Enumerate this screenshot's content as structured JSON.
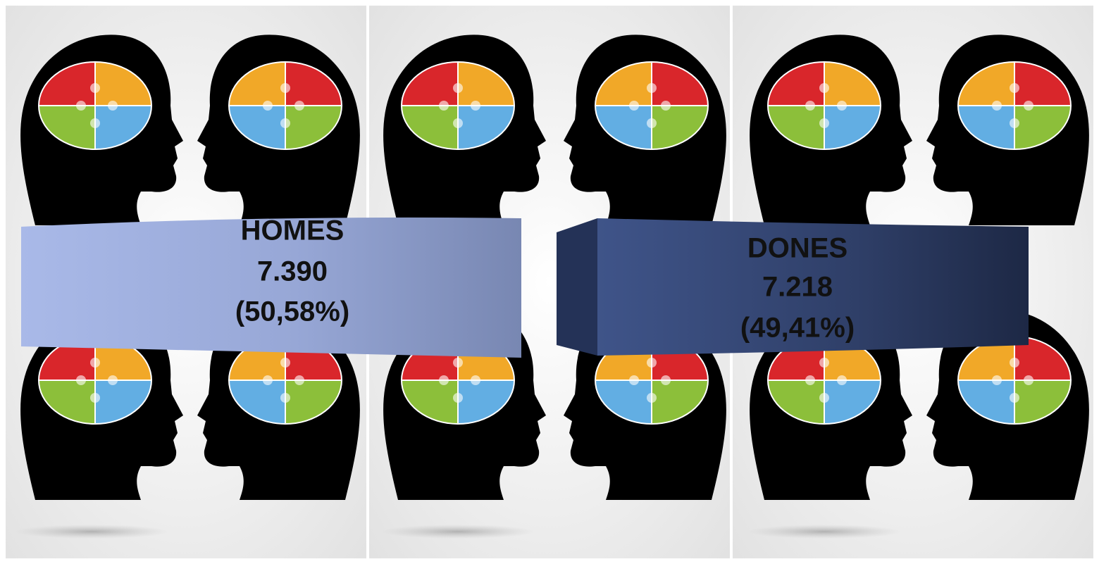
{
  "groups": [
    {
      "label": "HOMES",
      "count": "7.390",
      "share": "(50,58%)"
    },
    {
      "label": "DONES",
      "count": "7.218",
      "share": "(49,41%)"
    }
  ]
}
